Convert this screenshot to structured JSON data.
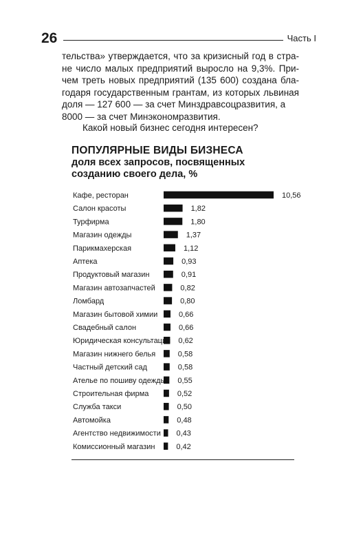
{
  "header": {
    "page_number": "26",
    "part": "Часть I"
  },
  "body": {
    "para1_lines": [
      "тельства» утверждается, что за кризисный год в стра-",
      "не число малых предприятий выросло на 9,3%. При-",
      "чем треть новых предприятий (135 600) создана бла-",
      "годаря государственным грантам, из которых львиная",
      "доля — 127 600 — за счет Минздравсоцразвития, а"
    ],
    "para1_last": "8000 — за счет Минэкономразвития.",
    "question": "Какой новый бизнес сегодня интересен?"
  },
  "chart_data": {
    "type": "bar",
    "orientation": "horizontal",
    "title": "ПОПУЛЯРНЫЕ ВИДЫ БИЗНЕСА",
    "subtitle": "доля всех запросов, посвященных созданию своего дела, %",
    "categories": [
      "Кафе, ресторан",
      "Салон красоты",
      "Турфирма",
      "Магазин одежды",
      "Парикмахерская",
      "Аптека",
      "Продуктовый магазин",
      "Магазин автозапчастей",
      "Ломбард",
      "Магазин бытовой химии",
      "Свадебный салон",
      "Юридическая консультация",
      "Магазин нижнего белья",
      "Частный детский сад",
      "Ателье по пошиву одежды",
      "Строительная фирма",
      "Служба такси",
      "Автомойка",
      "Агентство недвижимости",
      "Комиссионный магазин"
    ],
    "values": [
      10.56,
      1.82,
      1.8,
      1.37,
      1.12,
      0.93,
      0.91,
      0.82,
      0.8,
      0.66,
      0.66,
      0.62,
      0.58,
      0.58,
      0.55,
      0.52,
      0.5,
      0.48,
      0.43,
      0.42
    ],
    "value_labels": [
      "10,56",
      "1,82",
      "1,80",
      "1,37",
      "1,12",
      "0,93",
      "0,91",
      "0,82",
      "0,80",
      "0,66",
      "0,66",
      "0,62",
      "0,58",
      "0,58",
      "0,55",
      "0,52",
      "0,50",
      "0,48",
      "0,43",
      "0,42"
    ],
    "grid": false,
    "legend": "none",
    "bar_color": "#111111"
  }
}
